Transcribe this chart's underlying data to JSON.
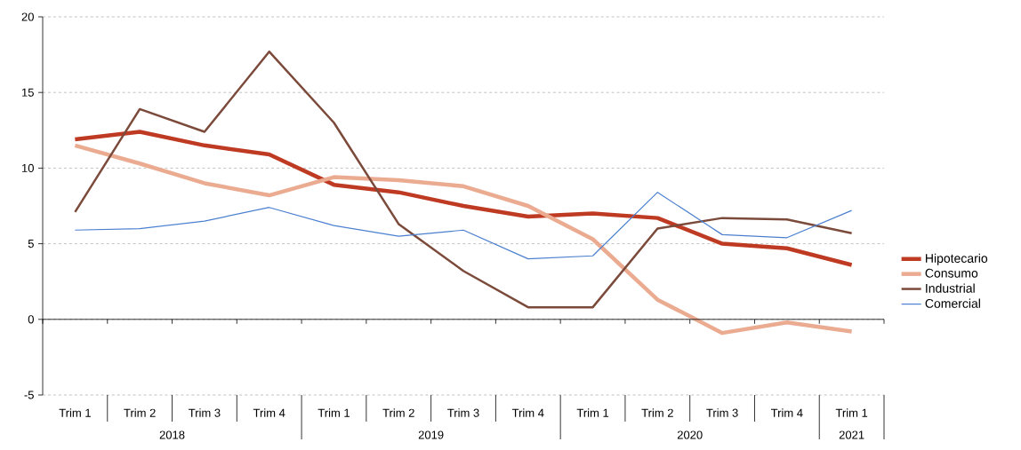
{
  "chart_data": {
    "type": "line",
    "categories": [
      "Trim 1",
      "Trim 2",
      "Trim 3",
      "Trim 4",
      "Trim 1",
      "Trim 2",
      "Trim 3",
      "Trim 4",
      "Trim 1",
      "Trim 2",
      "Trim 3",
      "Trim 4",
      "Trim 1"
    ],
    "series": [
      {
        "name": "Hipotecario",
        "color": "#bf3a22",
        "values": [
          11.9,
          12.4,
          11.5,
          10.9,
          8.9,
          8.4,
          7.5,
          6.8,
          7.0,
          6.7,
          5.0,
          4.7,
          3.6
        ]
      },
      {
        "name": "Consumo",
        "color": "#ebab91",
        "values": [
          11.5,
          10.3,
          9.0,
          8.2,
          9.4,
          9.2,
          8.8,
          7.5,
          5.3,
          1.3,
          -0.9,
          -0.2,
          -0.8
        ]
      },
      {
        "name": "Industrial",
        "color": "#7b4a3a",
        "values": [
          7.1,
          13.9,
          12.4,
          17.7,
          13.0,
          6.3,
          3.2,
          0.8,
          0.8,
          6.0,
          6.7,
          6.6,
          5.7
        ]
      },
      {
        "name": "Comercial",
        "color": "#4a7fcf",
        "values": [
          5.9,
          6.0,
          6.5,
          7.4,
          6.2,
          5.5,
          5.9,
          4.0,
          4.2,
          8.4,
          5.6,
          5.4,
          7.2
        ]
      }
    ],
    "annotations": [
      "2018",
      "2019",
      "2020",
      "2021"
    ],
    "ylim": [
      -5,
      20
    ],
    "yticks": [
      -5,
      0,
      5,
      10,
      15,
      20
    ],
    "grid": "y",
    "legend": "right",
    "line_style": "solid",
    "marker": "none"
  }
}
